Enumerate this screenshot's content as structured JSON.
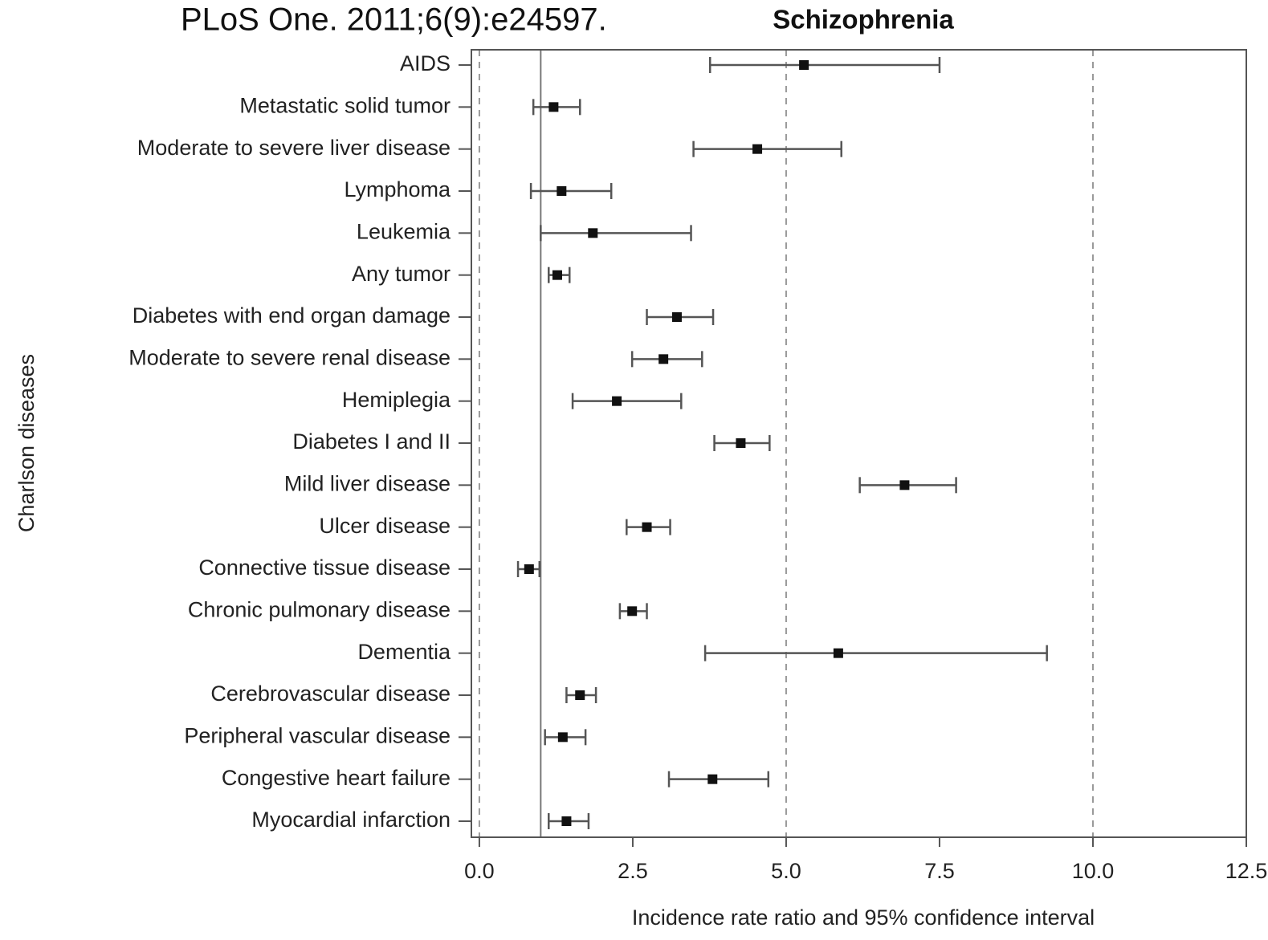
{
  "source": "PLoS One. 2011;6(9):e24597.",
  "chart_data": {
    "type": "forest",
    "title": "Schizophrenia",
    "x_label": "Incidence rate ratio and 95% confidence interval",
    "y_label": "Charlson diseases",
    "categories": [
      "AIDS",
      "Metastatic solid tumor",
      "Moderate to severe liver disease",
      "Lymphoma",
      "Leukemia",
      "Any tumor",
      "Diabetes with end organ damage",
      "Moderate to severe renal disease",
      "Hemiplegia",
      "Diabetes I and II",
      "Mild liver disease",
      "Ulcer disease",
      "Connective tissue disease",
      "Chronic pulmonary disease",
      "Dementia",
      "Cerebrovascular disease",
      "Peripheral vascular disease",
      "Congestive heart failure",
      "Myocardial infarction"
    ],
    "values": [
      5.29,
      1.21,
      4.53,
      1.34,
      1.85,
      1.27,
      3.22,
      3.0,
      2.24,
      4.26,
      6.93,
      2.73,
      0.81,
      2.49,
      5.85,
      1.64,
      1.36,
      3.8,
      1.42
    ],
    "lower": [
      3.76,
      0.88,
      3.49,
      0.84,
      1.0,
      1.13,
      2.73,
      2.49,
      1.52,
      3.83,
      6.2,
      2.4,
      0.63,
      2.29,
      3.68,
      1.42,
      1.07,
      3.09,
      1.13
    ],
    "upper": [
      7.5,
      1.64,
      5.9,
      2.15,
      3.45,
      1.47,
      3.81,
      3.63,
      3.29,
      4.73,
      7.77,
      3.11,
      0.98,
      2.73,
      9.25,
      1.9,
      1.73,
      4.71,
      1.78
    ],
    "color": "#111111",
    "xlim": [
      -0.13,
      12.5
    ],
    "xticks": [
      {
        "value": 0,
        "label": "0.0"
      },
      2.5,
      {
        "value": 5,
        "label": "5.0"
      },
      7.5,
      {
        "value": 10,
        "label": "10.0"
      },
      12.5
    ],
    "grid_lines": [
      0,
      5,
      10
    ],
    "reference_line": 1
  }
}
